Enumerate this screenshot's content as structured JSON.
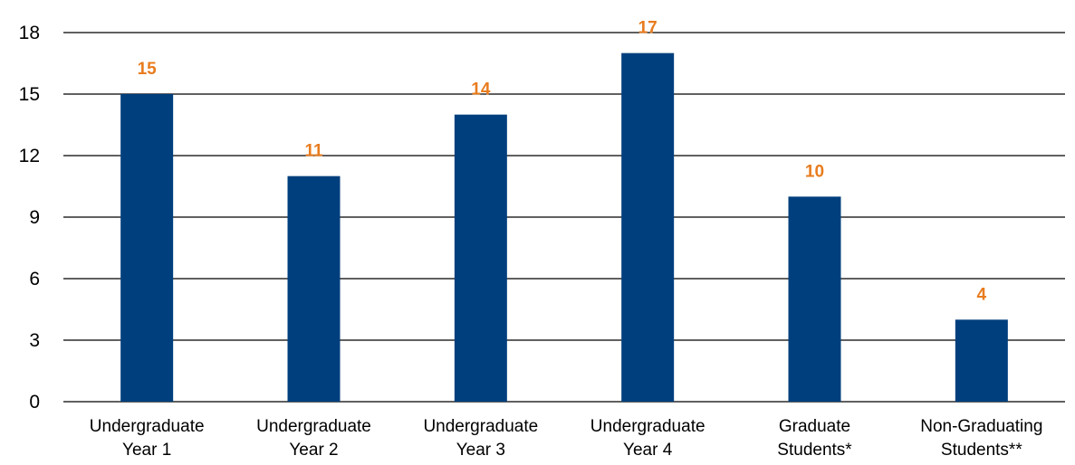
{
  "chart_data": {
    "type": "bar",
    "title": "",
    "xlabel": "",
    "ylabel": "",
    "categories": [
      [
        "Undergraduate",
        "Year 1"
      ],
      [
        "Undergraduate",
        "Year 2"
      ],
      [
        "Undergraduate",
        "Year 3"
      ],
      [
        "Undergraduate",
        "Year 4"
      ],
      [
        "Graduate",
        "Students*"
      ],
      [
        "Non-Graduating",
        "Students**"
      ]
    ],
    "values": [
      15,
      11,
      14,
      17,
      10,
      4
    ],
    "data_labels": [
      "15",
      "11",
      "14",
      "17",
      "10",
      "4"
    ],
    "ylim": [
      0,
      18
    ],
    "yticks": [
      0,
      3,
      6,
      9,
      12,
      15,
      18
    ],
    "ytick_labels": [
      "0",
      "3",
      "6",
      "9",
      "12",
      "15",
      "18"
    ],
    "grid": true,
    "legend": "none",
    "colors": {
      "bar": "#003f7d",
      "data_label": "#e87c1e",
      "gridline": "#000000"
    }
  }
}
